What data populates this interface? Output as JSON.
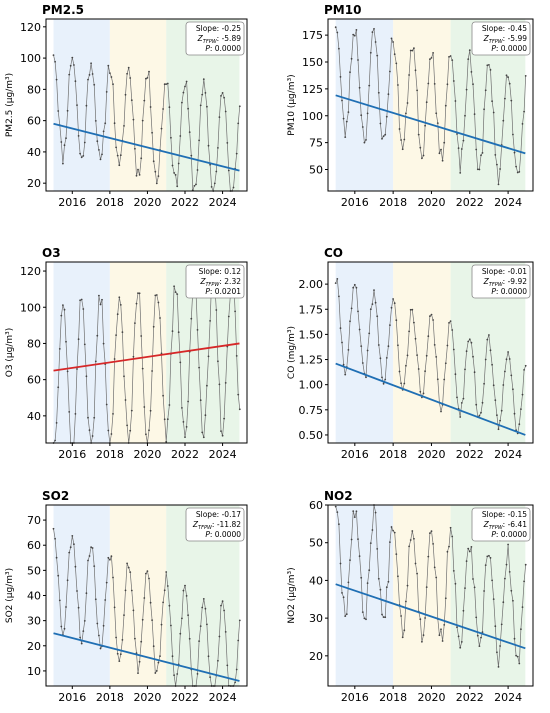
{
  "figure": {
    "x_ticks": [
      "2016",
      "2018",
      "2020",
      "2022",
      "2024"
    ],
    "period_colors": [
      "#e8f1fb",
      "#fdf8e6",
      "#e8f5e8"
    ],
    "series_color": "#6f6f6f",
    "trend_down_color": "#1f6fb4",
    "trend_up_color": "#d62728"
  },
  "chart_data": [
    {
      "type": "line",
      "title": "PM2.5",
      "ylabel": "PM2.5 (μg/m³)",
      "ylim": [
        15,
        125
      ],
      "yticks": [
        "20",
        "40",
        "60",
        "80",
        "100",
        "120"
      ],
      "xlim": [
        2014.6,
        2025.3
      ],
      "periods": [
        [
          2015.0,
          2018.0
        ],
        [
          2018.0,
          2021.0
        ],
        [
          2021.0,
          2024.9
        ]
      ],
      "series_name": "",
      "params": {
        "base": 57,
        "slope": -3.0,
        "amp": 33,
        "noise": 6,
        "seed": 11
      },
      "trend": {
        "x0": 2015.0,
        "y0": 58,
        "x1": 2024.9,
        "y1": 28,
        "direction": "down"
      },
      "stats": {
        "slope_text": "Slope: -0.25",
        "z_label": "Z",
        "z_sub": "TFPW",
        "z_value": ": -5.89",
        "p_label": "P",
        "p_value": ": 0.0000"
      }
    },
    {
      "type": "line",
      "title": "PM10",
      "ylabel": "PM10 (μg/m³)",
      "ylim": [
        30,
        190
      ],
      "yticks": [
        "50",
        "75",
        "100",
        "125",
        "150",
        "175"
      ],
      "xlim": [
        2014.6,
        2025.3
      ],
      "periods": [
        [
          2015.0,
          2018.0
        ],
        [
          2018.0,
          2021.0
        ],
        [
          2021.0,
          2024.9
        ]
      ],
      "series_name": "",
      "params": {
        "base": 112,
        "slope": -5.0,
        "amp": 50,
        "noise": 9,
        "seed": 23
      },
      "trend": {
        "x0": 2015.0,
        "y0": 119,
        "x1": 2024.9,
        "y1": 65,
        "direction": "down"
      },
      "stats": {
        "slope_text": "Slope: -0.45",
        "z_label": "Z",
        "z_sub": "TFPW",
        "z_value": ": -5.99",
        "p_label": "P",
        "p_value": ": 0.0000"
      }
    },
    {
      "type": "line",
      "title": "O3",
      "ylabel": "O3 (μg/m³)",
      "ylim": [
        25,
        125
      ],
      "yticks": [
        "40",
        "60",
        "80",
        "100",
        "120"
      ],
      "xlim": [
        2014.6,
        2025.3
      ],
      "periods": [
        [
          2015.0,
          2018.0
        ],
        [
          2018.0,
          2021.0
        ],
        [
          2021.0,
          2024.9
        ]
      ],
      "series_name": "",
      "params": {
        "base": 68,
        "slope": 1.4,
        "amp": -42,
        "noise": 6,
        "seed": 37
      },
      "trend": {
        "x0": 2015.0,
        "y0": 65,
        "x1": 2024.9,
        "y1": 80,
        "direction": "up"
      },
      "stats": {
        "slope_text": "Slope: 0.12",
        "z_label": "Z",
        "z_sub": "TFPW",
        "z_value": ": 2.32",
        "p_label": "P",
        "p_value": ": 0.0201"
      }
    },
    {
      "type": "line",
      "title": "CO",
      "ylabel": "CO (mg/m³)",
      "ylim": [
        0.42,
        2.22
      ],
      "yticks": [
        "0.50",
        "0.75",
        "1.00",
        "1.25",
        "1.50",
        "1.75",
        "2.00"
      ],
      "xlim": [
        2014.6,
        2025.3
      ],
      "periods": [
        [
          2015.0,
          2018.0
        ],
        [
          2018.0,
          2021.0
        ],
        [
          2021.0,
          2024.9
        ]
      ],
      "series_name": "",
      "params": {
        "base": 1.25,
        "slope": -0.075,
        "amp": 0.42,
        "noise": 0.07,
        "seed": 41
      },
      "trend": {
        "x0": 2015.0,
        "y0": 1.21,
        "x1": 2024.9,
        "y1": 0.5,
        "direction": "down"
      },
      "stats": {
        "slope_text": "Slope: -0.01",
        "z_label": "Z",
        "z_sub": "TFPW",
        "z_value": ": -9.92",
        "p_label": "P",
        "p_value": ": 0.0000"
      }
    },
    {
      "type": "line",
      "title": "SO2",
      "ylabel": "SO2 (μg/m³)",
      "ylim": [
        4,
        76
      ],
      "yticks": [
        "10",
        "20",
        "30",
        "40",
        "50",
        "60",
        "70"
      ],
      "xlim": [
        2014.6,
        2025.3
      ],
      "periods": [
        [
          2015.0,
          2018.0
        ],
        [
          2018.0,
          2021.0
        ],
        [
          2021.0,
          2024.9
        ]
      ],
      "series_name": "",
      "params": {
        "base": 30,
        "slope": -3.6,
        "amp": 20,
        "noise": 3,
        "seed": 53
      },
      "trend": {
        "x0": 2015.0,
        "y0": 25,
        "x1": 2024.9,
        "y1": 6,
        "direction": "down"
      },
      "stats": {
        "slope_text": "Slope: -0.17",
        "z_label": "Z",
        "z_sub": "TFPW",
        "z_value": ": -11.82",
        "p_label": "P",
        "p_value": ": 0.0000"
      }
    },
    {
      "type": "line",
      "title": "NO2",
      "ylabel": "NO2 (μg/m³)",
      "ylim": [
        12,
        60
      ],
      "yticks": [
        "20",
        "30",
        "40",
        "50",
        "60"
      ],
      "xlim": [
        2014.6,
        2025.3
      ],
      "periods": [
        [
          2015.0,
          2018.0
        ],
        [
          2018.0,
          2021.0
        ],
        [
          2021.0,
          2024.9
        ]
      ],
      "series_name": "",
      "params": {
        "base": 39,
        "slope": -1.6,
        "amp": 14,
        "noise": 3,
        "seed": 67
      },
      "trend": {
        "x0": 2015.0,
        "y0": 39,
        "x1": 2024.9,
        "y1": 22,
        "direction": "down"
      },
      "stats": {
        "slope_text": "Slope: -0.15",
        "z_label": "Z",
        "z_sub": "TFPW",
        "z_value": ": -6.41",
        "p_label": "P",
        "p_value": ": 0.0000"
      }
    }
  ]
}
